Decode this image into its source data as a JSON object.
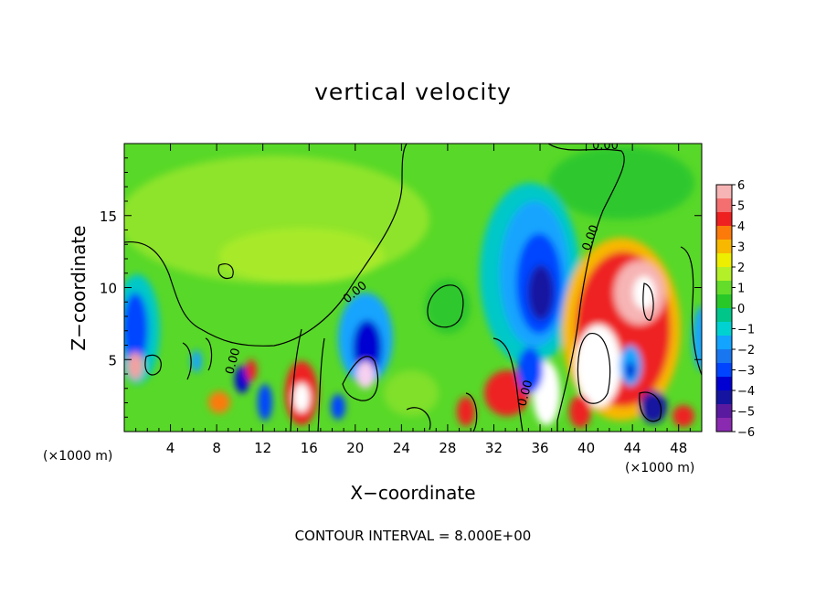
{
  "chart_data": {
    "type": "heatmap",
    "title": "vertical velocity",
    "xlabel": "X−coordinate",
    "ylabel": "Z−coordinate",
    "x_unit": "(×1000 m)",
    "x_unit_right": "(×1000 m)",
    "x_ticks": [
      4,
      8,
      12,
      16,
      20,
      24,
      28,
      32,
      36,
      40,
      44,
      48
    ],
    "y_ticks": [
      5,
      10,
      15
    ],
    "xlim": [
      0,
      50
    ],
    "ylim": [
      0,
      20
    ],
    "colorbar": {
      "labels": [
        "6",
        "5",
        "4",
        "3",
        "2",
        "1",
        "0",
        "−1",
        "−2",
        "−3",
        "−4",
        "−5",
        "−6"
      ],
      "colors": [
        "#f7b4b4",
        "#f47070",
        "#ee2020",
        "#fb7a0a",
        "#f8b800",
        "#eeee00",
        "#b4f028",
        "#64dc2a",
        "#28c828",
        "#00c68a",
        "#00d2d2",
        "#12a4ff",
        "#1877f0",
        "#0044ff",
        "#0000d2",
        "#1414a0",
        "#5a1aa0",
        "#8a2ab0"
      ]
    },
    "contour_labels": [
      "0.00",
      "0.00",
      "0.00",
      "0.00",
      "0.00"
    ],
    "footer": "CONTOUR INTERVAL = 8.000E+00"
  }
}
